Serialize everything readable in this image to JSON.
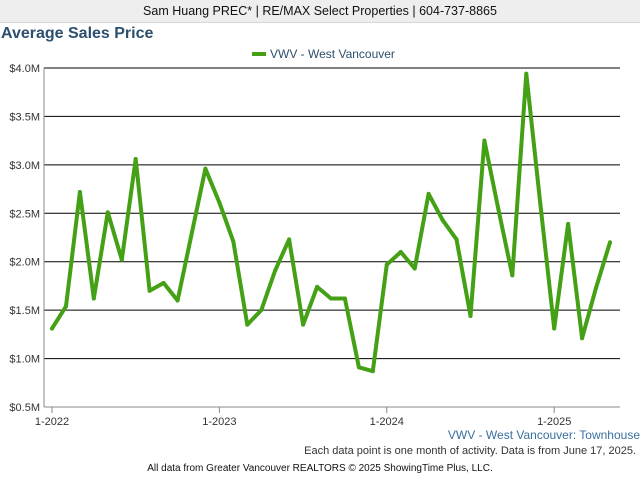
{
  "header": {
    "banner": "Sam Huang PREC* | RE/MAX Select Properties | 604-737-8865"
  },
  "colors": {
    "series": "#44a015",
    "title": "#2c4f6e",
    "subtitle": "#3a6fa0",
    "axis": "#333333",
    "grid": "#000000"
  },
  "chart_data": {
    "type": "line",
    "title": "Average Sales Price",
    "subtitle": "VWV - West Vancouver: Townhouse",
    "xlabel": "",
    "ylabel": "",
    "legend_position": "top-center",
    "grid": true,
    "ylim": [
      0.5,
      4.0
    ],
    "ytick_values": [
      0.5,
      1.0,
      1.5,
      2.0,
      2.5,
      3.0,
      3.5,
      4.0
    ],
    "ytick_labels": [
      "$0.5M",
      "$1.0M",
      "$1.5M",
      "$2.0M",
      "$2.5M",
      "$3.0M",
      "$3.5M",
      "$4.0M"
    ],
    "xticks": [
      {
        "label": "1-2022",
        "month": 0
      },
      {
        "label": "1-2023",
        "month": 12
      },
      {
        "label": "1-2024",
        "month": 24
      },
      {
        "label": "1-2025",
        "month": 36
      }
    ],
    "x": [
      "2022-01",
      "2022-02",
      "2022-03",
      "2022-04",
      "2022-05",
      "2022-06",
      "2022-07",
      "2022-08",
      "2022-09",
      "2022-10",
      "2022-11",
      "2022-12",
      "2023-01",
      "2023-02",
      "2023-03",
      "2023-04",
      "2023-05",
      "2023-06",
      "2023-07",
      "2023-08",
      "2023-09",
      "2023-10",
      "2023-11",
      "2023-12",
      "2024-01",
      "2024-02",
      "2024-03",
      "2024-04",
      "2024-05",
      "2024-06",
      "2024-07",
      "2024-08",
      "2024-09",
      "2024-10",
      "2024-11",
      "2024-12",
      "2025-01",
      "2025-02",
      "2025-03",
      "2025-04",
      "2025-05"
    ],
    "series": [
      {
        "name": "VWV - West Vancouver",
        "color": "#44a015",
        "values": [
          1.31,
          1.54,
          2.72,
          1.62,
          2.51,
          2.02,
          3.06,
          1.7,
          1.78,
          1.6,
          2.28,
          2.96,
          2.61,
          2.21,
          1.35,
          1.5,
          1.91,
          2.23,
          1.35,
          1.74,
          1.62,
          1.62,
          0.91,
          0.87,
          1.97,
          2.1,
          1.93,
          2.7,
          2.43,
          2.23,
          1.44,
          3.25,
          2.54,
          1.86,
          3.94,
          2.6,
          1.31,
          2.39,
          1.21,
          1.73,
          2.2
        ]
      }
    ]
  },
  "footer": {
    "note": "Each data point is one month of activity. Data is from June 17, 2025.",
    "credit": "All data from Greater Vancouver REALTORS © 2025 ShowingTime Plus, LLC."
  }
}
